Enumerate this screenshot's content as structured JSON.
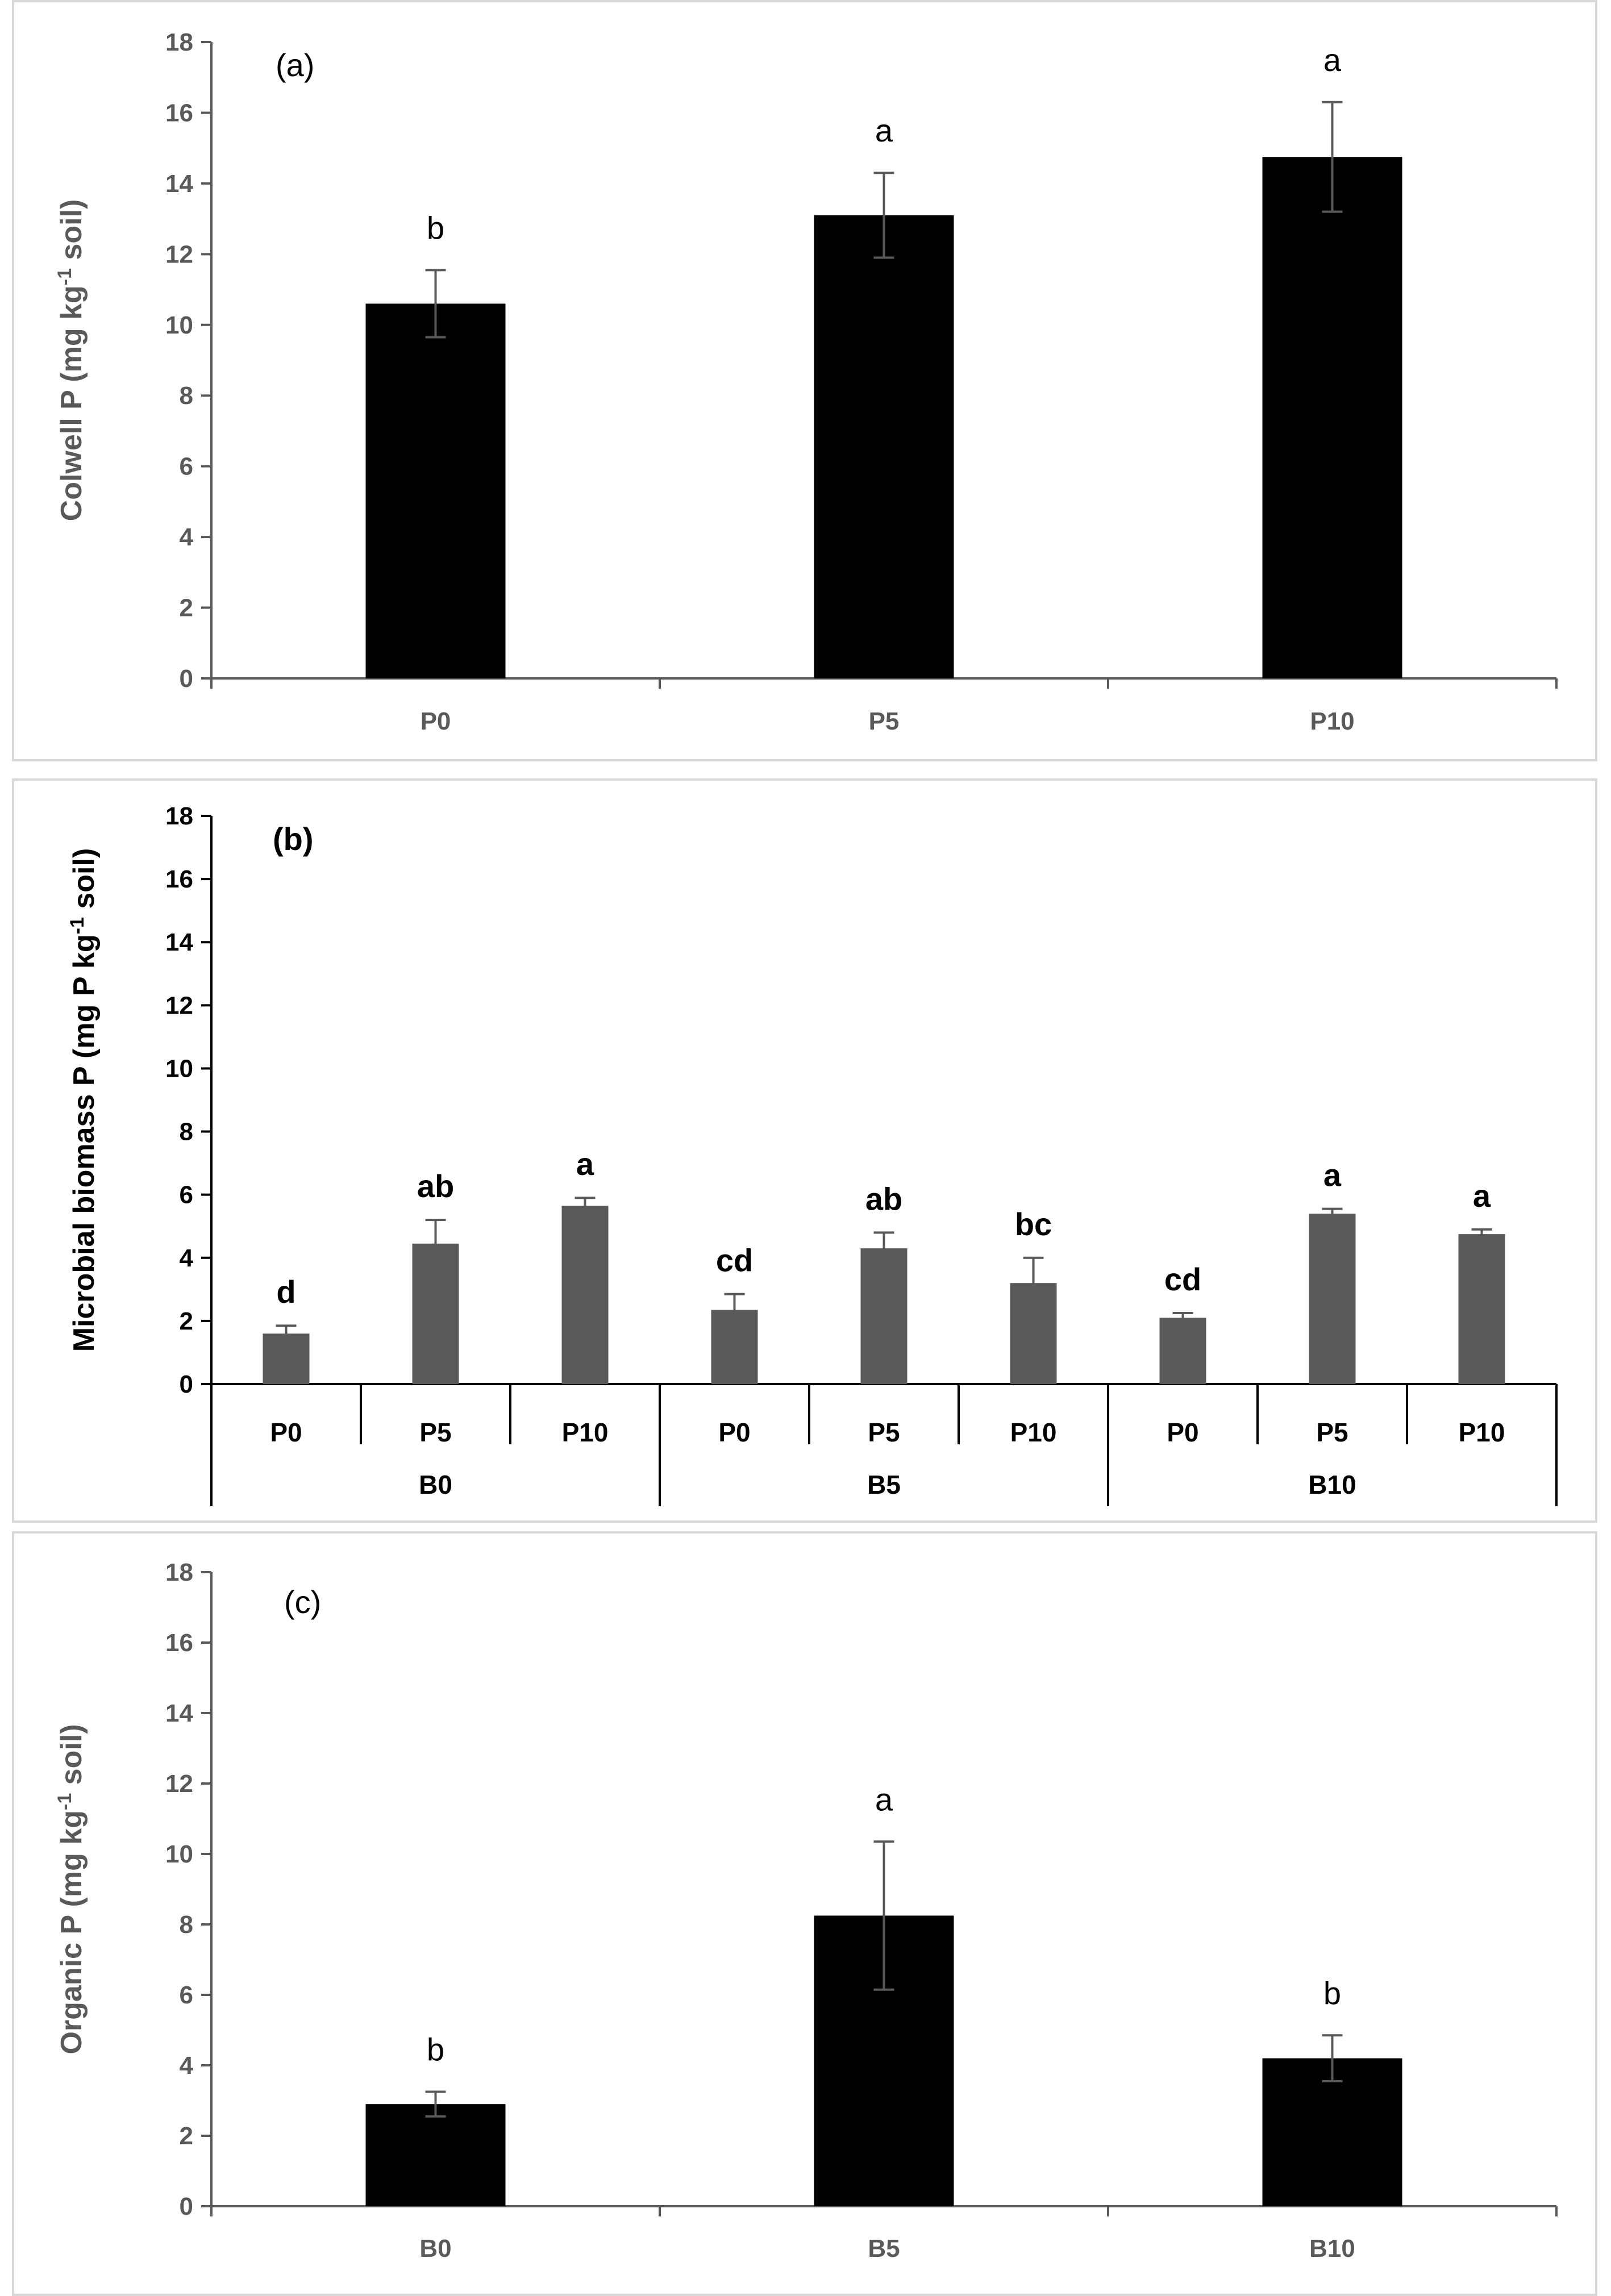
{
  "chart_data": [
    {
      "type": "bar",
      "panel": "(a)",
      "title": "",
      "xlabel": "",
      "ylabel": "Colwell P (mg kg-1 soil)",
      "ylabel_parts": [
        "Colwell P (mg kg",
        "-1",
        " soil)"
      ],
      "ylim": [
        0,
        18
      ],
      "yticks": [
        "0",
        "2",
        "4",
        "6",
        "8",
        "10",
        "12",
        "14",
        "16",
        "18"
      ],
      "categories": [
        "P0",
        "P5",
        "P10"
      ],
      "values": [
        10.6,
        13.1,
        14.75
      ],
      "errors": [
        0.95,
        1.2,
        1.55
      ],
      "significance": [
        "b",
        "a",
        "a"
      ],
      "bar_color": "#000000"
    },
    {
      "type": "bar",
      "panel": "(b)",
      "title": "",
      "xlabel": "",
      "ylabel": "Microbial biomass P (mg P kg-1 soil)",
      "ylabel_parts": [
        "Microbial biomass P (mg P kg",
        "-1",
        " soil)"
      ],
      "ylim": [
        0,
        18
      ],
      "yticks": [
        "0",
        "2",
        "4",
        "6",
        "8",
        "10",
        "12",
        "14",
        "16",
        "18"
      ],
      "categories": [
        "P0",
        "P5",
        "P10",
        "P0",
        "P5",
        "P10",
        "P0",
        "P5",
        "P10"
      ],
      "groups": [
        "B0",
        "B5",
        "B10"
      ],
      "values": [
        1.6,
        4.45,
        5.65,
        2.35,
        4.3,
        3.2,
        2.1,
        5.4,
        4.75
      ],
      "errors": [
        0.25,
        0.75,
        0.25,
        0.5,
        0.5,
        0.8,
        0.15,
        0.15,
        0.15
      ],
      "significance": [
        "d",
        "ab",
        "a",
        "cd",
        "ab",
        "bc",
        "cd",
        "a",
        "a"
      ],
      "bar_color": "#595959"
    },
    {
      "type": "bar",
      "panel": "(c)",
      "title": "",
      "xlabel": "",
      "ylabel": "Organic P (mg kg-1 soil)",
      "ylabel_parts": [
        "Organic P (mg kg",
        "-1",
        " soil)"
      ],
      "ylim": [
        0,
        18
      ],
      "yticks": [
        "0",
        "2",
        "4",
        "6",
        "8",
        "10",
        "12",
        "14",
        "16",
        "18"
      ],
      "categories": [
        "B0",
        "B5",
        "B10"
      ],
      "values": [
        2.9,
        8.25,
        4.2
      ],
      "errors": [
        0.35,
        2.1,
        0.65
      ],
      "significance": [
        "b",
        "a",
        "b"
      ],
      "bar_color": "#000000"
    }
  ]
}
